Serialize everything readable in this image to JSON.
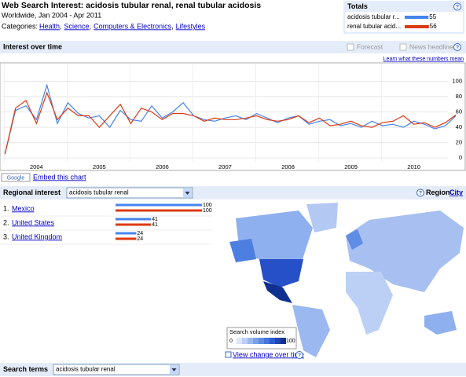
{
  "header": {
    "title": "Web Search Interest: acidosis tubular renal, renal tubular acidosis",
    "location_range": "Worldwide, Jan 2004 - Apr 2011",
    "categories_label": "Categories:",
    "categories": [
      "Health",
      "Science",
      "Computers & Electronics",
      "Lifestyles"
    ],
    "separator": ","
  },
  "help_icon": "?",
  "totals": {
    "title": "Totals",
    "rows": [
      {
        "term": "acidosis tubular r...",
        "value": 55,
        "color": "#4684ee"
      },
      {
        "term": "renal tubular acid...",
        "value": 56,
        "color": "#dc3912"
      }
    ]
  },
  "interest_over_time": {
    "title": "Interest over time",
    "forecast_label": "Forecast",
    "news_label": "News headlines",
    "learn_link": "Learn what these numbers mean",
    "embed_badge": "Google",
    "embed_link": "Embed this chart",
    "chart": {
      "type": "line",
      "categories": [
        null,
        null,
        null,
        "2004",
        null,
        null,
        null,
        null,
        null,
        "2005",
        null,
        null,
        null,
        null,
        null,
        "2006",
        null,
        null,
        null,
        null,
        null,
        "2007",
        null,
        null,
        null,
        null,
        null,
        "2008",
        null,
        null,
        null,
        null,
        null,
        "2009",
        null,
        null,
        null,
        null,
        null,
        "2010",
        null,
        null,
        null,
        null
      ],
      "series": [
        {
          "color": "#4684ee",
          "values": [
            5,
            62,
            68,
            50,
            95,
            45,
            72,
            58,
            52,
            55,
            40,
            62,
            50,
            48,
            68,
            52,
            60,
            72,
            55,
            50,
            48,
            52,
            55,
            50,
            58,
            52,
            46,
            52,
            55,
            44,
            48,
            50,
            42,
            45,
            40,
            48,
            42,
            44,
            40,
            48,
            44,
            38,
            42,
            55
          ]
        },
        {
          "color": "#dc3912",
          "values": [
            5,
            65,
            75,
            45,
            85,
            50,
            65,
            55,
            55,
            40,
            55,
            70,
            45,
            65,
            60,
            50,
            58,
            58,
            55,
            48,
            52,
            50,
            50,
            52,
            55,
            50,
            48,
            50,
            55,
            46,
            52,
            42,
            44,
            48,
            42,
            40,
            46,
            48,
            55,
            44,
            46,
            40,
            46,
            56
          ]
        }
      ],
      "ylim": [
        -5,
        122
      ],
      "yticks": [
        0,
        20,
        40,
        60,
        80,
        100
      ],
      "grid": true
    }
  },
  "regional_interest": {
    "title": "Regional interest",
    "selected_term": "acidosis tubular renal",
    "region_label": "Region",
    "city_link": "City",
    "rows": [
      {
        "rank": "1.",
        "name": "Mexico",
        "values": [
          100,
          100
        ]
      },
      {
        "rank": "2.",
        "name": "United States",
        "values": [
          41,
          41
        ]
      },
      {
        "rank": "3.",
        "name": "United Kingdom",
        "values": [
          24,
          24
        ]
      }
    ],
    "map_legend": {
      "title": "Search volume index",
      "min": 0,
      "max": 100
    },
    "change_link": "View change over time"
  },
  "search_terms": {
    "title": "Search terms",
    "selected_term": "acidosis tubular renal"
  }
}
